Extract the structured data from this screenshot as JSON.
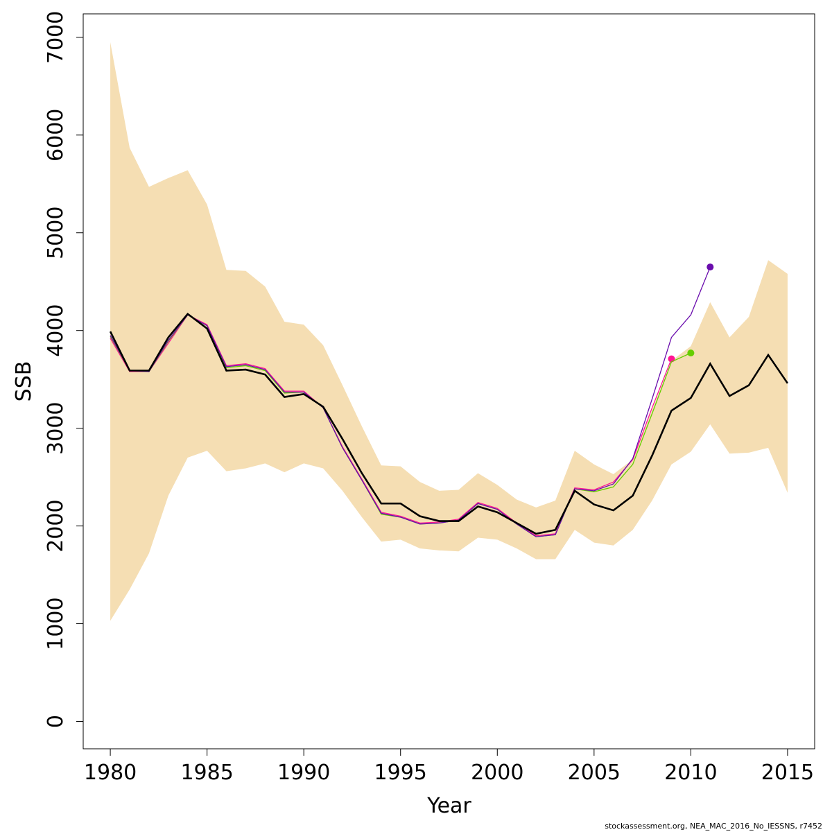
{
  "footer_text": "stockassessment.org, NEA_MAC_2016_No_IESSNS, r7452",
  "colors": {
    "band": "#F5DEB3",
    "main": "#000000",
    "retro_2009": "#FF1493",
    "retro_2010": "#66CD00",
    "retro_2011": "#6A0DAD"
  },
  "chart_data": {
    "type": "line",
    "title": "",
    "xlabel": "Year",
    "ylabel": "SSB",
    "xlim": [
      1978.6,
      2016.4
    ],
    "ylim": [
      -280,
      7240
    ],
    "x_ticks": [
      1980,
      1985,
      1990,
      1995,
      2000,
      2005,
      2010,
      2015
    ],
    "y_ticks": [
      0,
      1000,
      2000,
      3000,
      4000,
      5000,
      6000,
      7000
    ],
    "grid": false,
    "years": [
      1980,
      1981,
      1982,
      1983,
      1984,
      1985,
      1986,
      1987,
      1988,
      1989,
      1990,
      1991,
      1992,
      1993,
      1994,
      1995,
      1996,
      1997,
      1998,
      1999,
      2000,
      2001,
      2002,
      2003,
      2004,
      2005,
      2006,
      2007,
      2008,
      2009,
      2010,
      2011,
      2012,
      2013,
      2014,
      2015
    ],
    "estimate": [
      3990,
      3590,
      3590,
      3930,
      4170,
      4020,
      3590,
      3600,
      3550,
      3320,
      3350,
      3220,
      2890,
      2540,
      2230,
      2230,
      2100,
      2050,
      2050,
      2200,
      2140,
      2030,
      1920,
      1960,
      2360,
      2220,
      2160,
      2310,
      2720,
      3180,
      3310,
      3660,
      3330,
      3440,
      3750,
      3460
    ],
    "upper": [
      6950,
      5870,
      5470,
      5560,
      5640,
      5290,
      4620,
      4610,
      4450,
      4090,
      4060,
      3850,
      3440,
      3020,
      2620,
      2610,
      2450,
      2360,
      2370,
      2540,
      2420,
      2270,
      2190,
      2260,
      2770,
      2630,
      2530,
      2680,
      3190,
      3690,
      3840,
      4290,
      3930,
      4140,
      4720,
      4580
    ],
    "lower": [
      1030,
      1350,
      1720,
      2310,
      2700,
      2770,
      2560,
      2590,
      2640,
      2550,
      2640,
      2590,
      2360,
      2090,
      1840,
      1860,
      1770,
      1750,
      1740,
      1880,
      1860,
      1770,
      1660,
      1660,
      1960,
      1830,
      1800,
      1960,
      2260,
      2630,
      2760,
      3040,
      2740,
      2750,
      2800,
      2340
    ],
    "retrospective": [
      {
        "peel_end": 2009,
        "x": [
          1980,
          1981,
          1982,
          1983,
          1984,
          1985,
          1986,
          1987,
          1988,
          1989,
          1990,
          1991,
          1992,
          1993,
          1994,
          1995,
          1996,
          1997,
          1998,
          1999,
          2000,
          2001,
          2002,
          2003,
          2004,
          2005,
          2006,
          2007,
          2008,
          2009
        ],
        "y": [
          3920,
          3580,
          3580,
          3870,
          4160,
          4060,
          3640,
          3660,
          3610,
          3380,
          3380,
          3210,
          2810,
          2480,
          2140,
          2100,
          2030,
          2040,
          2070,
          2240,
          2180,
          2030,
          1900,
          1920,
          2390,
          2370,
          2450,
          2680,
          3210,
          3710
        ]
      },
      {
        "peel_end": 2010,
        "x": [
          1980,
          1981,
          1982,
          1983,
          1984,
          1985,
          1986,
          1987,
          1988,
          1989,
          1990,
          1991,
          1992,
          1993,
          1994,
          1995,
          1996,
          1997,
          1998,
          1999,
          2000,
          2001,
          2002,
          2003,
          2004,
          2005,
          2006,
          2007,
          2008,
          2009,
          2010
        ],
        "y": [
          3940,
          3590,
          3580,
          3890,
          4160,
          4050,
          3620,
          3640,
          3590,
          3360,
          3370,
          3210,
          2800,
          2470,
          2120,
          2090,
          2020,
          2030,
          2060,
          2230,
          2170,
          2020,
          1890,
          1910,
          2380,
          2350,
          2400,
          2630,
          3150,
          3680,
          3770
        ]
      },
      {
        "peel_end": 2011,
        "x": [
          1980,
          1981,
          1982,
          1983,
          1984,
          1985,
          1986,
          1987,
          1988,
          1989,
          1990,
          1991,
          1992,
          1993,
          1994,
          1995,
          1996,
          1997,
          1998,
          1999,
          2000,
          2001,
          2002,
          2003,
          2004,
          2005,
          2006,
          2007,
          2008,
          2009,
          2010,
          2011
        ],
        "y": [
          3950,
          3590,
          3580,
          3900,
          4160,
          4050,
          3630,
          3650,
          3600,
          3370,
          3370,
          3210,
          2800,
          2470,
          2130,
          2090,
          2020,
          2030,
          2060,
          2230,
          2170,
          2020,
          1890,
          1910,
          2380,
          2360,
          2430,
          2690,
          3300,
          3930,
          4160,
          4650
        ]
      }
    ]
  }
}
